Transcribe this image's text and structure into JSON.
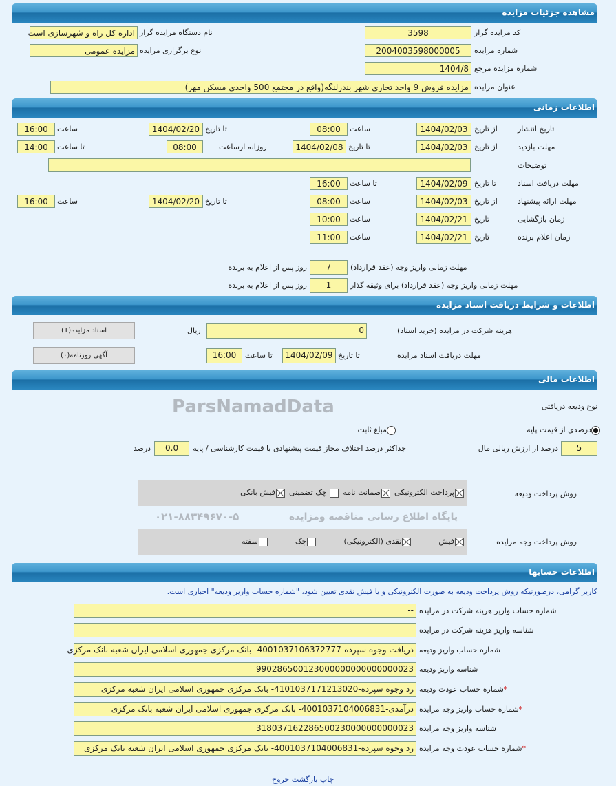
{
  "sections": {
    "details": "مشاهده جزئیات مزایده",
    "timing": "اطلاعات زمانی",
    "documents": "اطلاعات و شرایط دریافت اسناد مزایده",
    "financial": "اطلاعات مالی",
    "accounts": "اطلاعات حسابها"
  },
  "details": {
    "code_label": "کد مزایده گزار",
    "code": "3598",
    "org_label": "نام دستگاه مزایده گزار",
    "org": "اداره کل راه و شهرسازی است",
    "number_label": "شماره مزایده",
    "number": "2004003598000005",
    "type_label": "نوع برگزاری مزایده",
    "type": "مزایده عمومی",
    "ref_label": "شماره مزایده مرجع",
    "ref": "1404/8",
    "title_label": "عنوان مزایده",
    "title": "مزایده فروش  9  واحد تجاری شهر بندرلنگه(واقع در مجتمع 500 واحدی مسکن مهر)"
  },
  "timing": {
    "from_date": "از تاریخ",
    "to_date": "تا تاریخ",
    "time": "ساعت",
    "to_time": "تا ساعت",
    "date": "تاریخ",
    "daily_from": "روزانه ازساعت",
    "publish": {
      "label": "تاریخ انتشار",
      "from": "1404/02/03",
      "from_time": "08:00",
      "to": "1404/02/20",
      "to_time": "16:00"
    },
    "visit": {
      "label": "مهلت بازدید",
      "from": "1404/02/03",
      "to": "1404/02/08",
      "daily_from": "08:00",
      "to_time": "14:00"
    },
    "desc_label": "توضیحات",
    "desc": "",
    "docs": {
      "label": "مهلت دریافت اسناد",
      "to": "1404/02/09",
      "to_time": "16:00"
    },
    "offer": {
      "label": "مهلت ارائه پیشنهاد",
      "from": "1404/02/03",
      "from_time": "08:00",
      "to": "1404/02/20",
      "to_time": "16:00"
    },
    "opening": {
      "label": "زمان بازگشایی",
      "date": "1404/02/21",
      "time": "10:00"
    },
    "winner": {
      "label": "زمان اعلام برنده",
      "date": "1404/02/21",
      "time": "11:00"
    },
    "pay_contract": {
      "label": "مهلت زمانی واریز وجه (عقد قرارداد)",
      "value": "7",
      "suffix": "روز پس از اعلام به برنده"
    },
    "pay_guarantor": {
      "label": "مهلت زمانی واریز وجه (عقد قرارداد) برای وثیقه گذار",
      "value": "1",
      "suffix": "روز پس از اعلام به برنده"
    }
  },
  "documents": {
    "fee_label": "هزینه شرکت در مزایده (خرید اسناد)",
    "fee": "0",
    "currency": "ریال",
    "deadline_label": "مهلت دریافت اسناد مزایده",
    "to_date_label": "تا تاریخ",
    "to_date": "1404/02/09",
    "to_time_label": "تا ساعت",
    "to_time": "16:00",
    "docs_button": "اسناد مزایده(1)",
    "ads_button": "آگهی روزنامه(۰)"
  },
  "financial": {
    "deposit_type_label": "نوع ودیعه دریافتی",
    "radio_percent": "درصدی از قیمت پایه",
    "radio_fixed": "مبلغ ثابت",
    "selected": "percent",
    "percent": "5",
    "percent_label": "درصد از ارزش ریالی مال",
    "max_diff_label": "جداکثر درصد اختلاف مجاز قیمت پیشنهادی با قیمت کارشناسی / پایه",
    "max_diff": "0.0",
    "max_diff_unit": "درصد",
    "deposit_methods_label": "روش پرداخت ودیعه",
    "deposit_methods": [
      {
        "label": "پرداخت الکترونیکی",
        "checked": true
      },
      {
        "label": "ضمانت نامه",
        "checked": true
      },
      {
        "label": "چک تضمینی",
        "checked": false
      },
      {
        "label": "فیش بانکی",
        "checked": true
      }
    ],
    "payment_methods_label": "روش پرداخت وجه مزایده",
    "payment_methods": [
      {
        "label": "فیش",
        "checked": true
      },
      {
        "label": "نقدی (الکترونیکی)",
        "checked": true
      },
      {
        "label": "چک",
        "checked": false
      },
      {
        "label": "سفته",
        "checked": false
      }
    ]
  },
  "accounts": {
    "notice": "کاربر گرامی، درصورتیکه روش پرداخت ودیعه به صورت الکترونیکی و یا فیش نقدی تعیین شود، \"شماره حساب واریز ودیعه\" اجباری است.",
    "rows": [
      {
        "label": "شماره حساب واریز هزینه شرکت در مزایده",
        "value": "--",
        "required": false
      },
      {
        "label": "شناسه واریز هزینه شرکت در مزایده",
        "value": "-",
        "required": false
      },
      {
        "label": "شماره حساب واریز ودیعه",
        "value": "دریافت وجوه سپرده-4001037106372777- بانک مرکزی جمهوری اسلامی ایران شعبه بانک مرکزی",
        "required": false
      },
      {
        "label": "شناسه واریز ودیعه",
        "value": "990286500123000000000000000023",
        "required": false
      },
      {
        "label": "شماره حساب عودت ودیعه",
        "value": "رد وجوه سپرده-4101037171213020- بانک مرکزی جمهوری اسلامی ایران شعبه مرکزی",
        "required": true
      },
      {
        "label": "شماره حساب واریز وجه مزایده",
        "value": "درآمدی-4001037104006831- بانک مرکزی جمهوری اسلامی ایران شعبه بانک مرکزی",
        "required": true
      },
      {
        "label": "شناسه واریز وجه مزایده",
        "value": "318037162286500230000000000023",
        "required": false
      },
      {
        "label": "شماره حساب عودت وجه مزایده",
        "value": "رد وجوه سپرده-4001037104006831- بانک مرکزی جمهوری اسلامی ایران شعبه بانک مرکزی",
        "required": true
      }
    ]
  },
  "footer": {
    "print": "چاپ",
    "back": "بازگشت",
    "exit": "خروج"
  },
  "watermark": {
    "brand": "ParsNamadData",
    "line1": "پایگاه اطلاع رسانی مناقصه ومزایده",
    "phone": "۰۲۱-۸۸۳۴۹۶۷۰-۵"
  }
}
